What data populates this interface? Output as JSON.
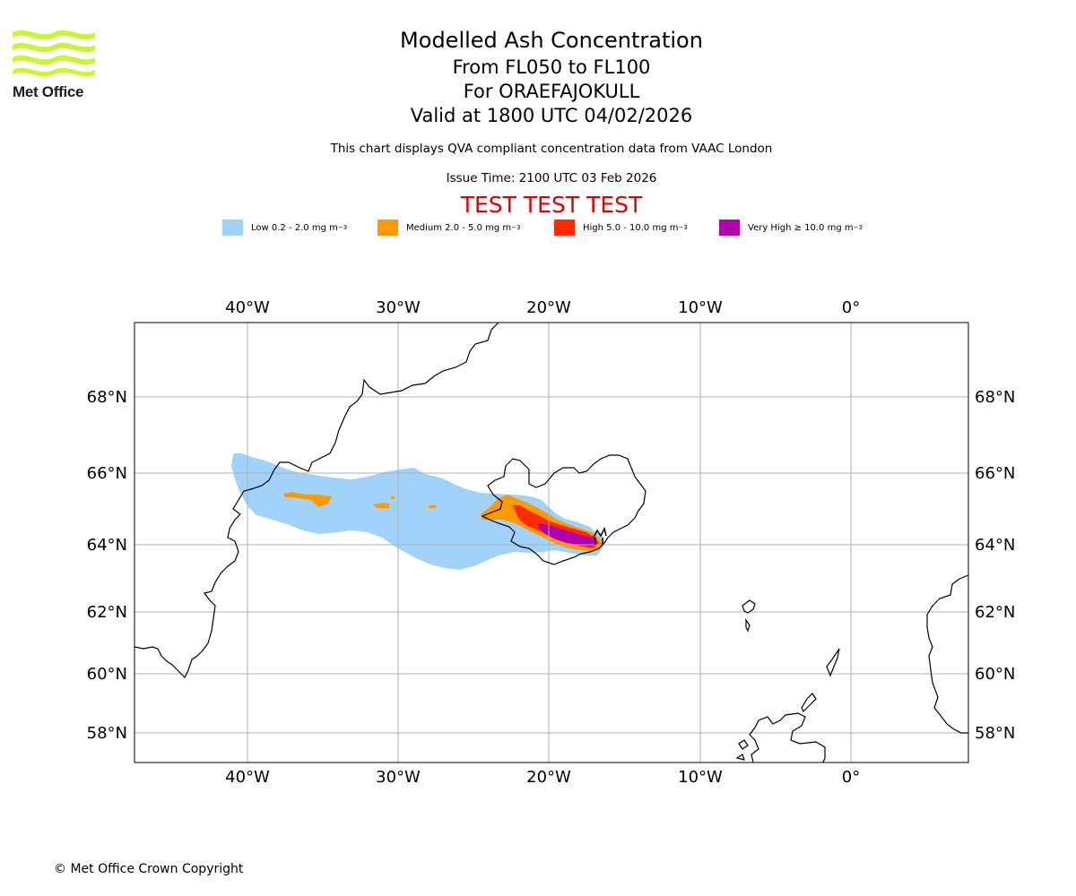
{
  "logo": {
    "text": "Met Office",
    "brand_color": "#c8f534"
  },
  "header": {
    "title": "Modelled Ash Concentration",
    "levels": "From FL050 to FL100",
    "volcano": "For ORAEFAJOKULL",
    "valid": "Valid at 1800 UTC 04/02/2026",
    "note": "This chart displays QVA compliant concentration data from VAAC London",
    "issue_time": "Issue Time: 2100 UTC 03 Feb 2026",
    "test_banner": "TEST TEST TEST"
  },
  "legend": [
    {
      "name": "Low",
      "label": "Low 0.2 - 2.0 mg m",
      "unit_exp": "−3",
      "color": "#a0d2fa"
    },
    {
      "name": "Medium",
      "label": "Medium 2.0 - 5.0 mg m",
      "unit_exp": "−3",
      "color": "#ff9900"
    },
    {
      "name": "High",
      "label": "High 5.0 - 10.0 mg m",
      "unit_exp": "−3",
      "color": "#ff2a00"
    },
    {
      "name": "Very High",
      "label": "Very High  ≥  10.0 mg m",
      "unit_exp": "−3",
      "color": "#b000b0"
    }
  ],
  "map": {
    "lon_ticks": [
      "40°W",
      "30°W",
      "20°W",
      "10°W",
      "0°"
    ],
    "lat_ticks": [
      "68°N",
      "66°N",
      "64°N",
      "62°N",
      "60°N",
      "58°N"
    ],
    "extent": {
      "lon_min": -47.5,
      "lon_max": 7.5,
      "lat_min": 57,
      "lat_max": 70
    },
    "volcano_name": "ORAEFAJOKULL"
  },
  "footer": {
    "copyright": "© Met Office Crown Copyright"
  }
}
